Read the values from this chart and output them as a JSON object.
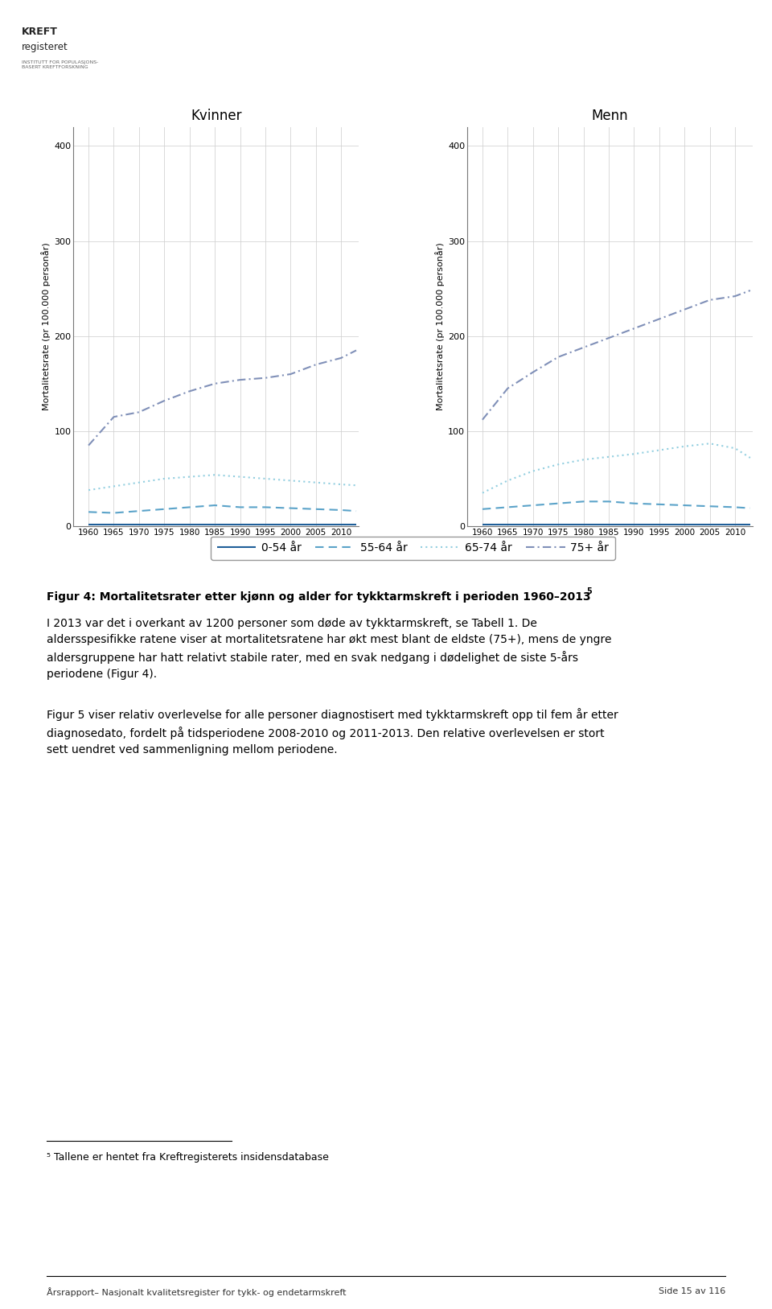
{
  "years": [
    1960,
    1965,
    1970,
    1975,
    1980,
    1985,
    1990,
    1995,
    2000,
    2005,
    2010,
    2013
  ],
  "kvinner": {
    "age_0_54": [
      1.5,
      1.5,
      1.5,
      1.5,
      1.5,
      1.5,
      1.5,
      1.5,
      1.5,
      1.5,
      1.5,
      1.5
    ],
    "age_55_64": [
      15,
      14,
      16,
      18,
      20,
      22,
      20,
      20,
      19,
      18,
      17,
      16
    ],
    "age_65_74": [
      38,
      42,
      46,
      50,
      52,
      54,
      52,
      50,
      48,
      46,
      44,
      43
    ],
    "age_75plus": [
      85,
      115,
      120,
      132,
      142,
      150,
      154,
      156,
      160,
      170,
      177,
      185
    ]
  },
  "menn": {
    "age_0_54": [
      1.5,
      1.5,
      1.5,
      1.5,
      1.5,
      1.5,
      1.5,
      1.5,
      1.5,
      1.5,
      1.5,
      1.5
    ],
    "age_55_64": [
      18,
      20,
      22,
      24,
      26,
      26,
      24,
      23,
      22,
      21,
      20,
      19
    ],
    "age_65_74": [
      35,
      48,
      58,
      65,
      70,
      73,
      76,
      80,
      84,
      87,
      82,
      72
    ],
    "age_75plus": [
      112,
      145,
      162,
      178,
      188,
      198,
      208,
      218,
      228,
      238,
      242,
      248
    ]
  },
  "color_0_54": "#1f5f99",
  "color_55_64": "#5ba3c9",
  "color_65_74": "#93cfe0",
  "color_75plus": "#8090b8",
  "ylabel": "Mortalitetsrate (pr 100.000 personår)",
  "ylim": [
    0,
    420
  ],
  "yticks": [
    0,
    100,
    200,
    300,
    400
  ],
  "xtick_years": [
    1960,
    1965,
    1970,
    1975,
    1980,
    1985,
    1990,
    1995,
    2000,
    2005,
    2010
  ],
  "title_kvinner": "Kvinner",
  "title_menn": "Menn",
  "legend_labels": [
    "0-54 år",
    "55-64 år",
    "65-74 år",
    "75+ år"
  ],
  "fig_caption": "Figur 4: Mortalitetsrater etter kjønn og alder for tykktarmskreft i perioden 1960–2013",
  "fig_caption_super": "5",
  "body_text1": "I 2013 var det i overkant av 1200 personer som døde av tykktarmskreft, se Tabell 1. De\naldersspesifikke ratene viser at mortalitetsratene har økt mest blant de eldste (75+), mens de yngre\naldersgruppene har hatt relativt stabile rater, med en svak nedgang i dødelighet de siste 5-års\nperiodene (Figur 4).",
  "body_text2": "Figur 5 viser relativ overlevelse for alle personer diagnostisert med tykktarmskreft opp til fem år etter\ndiagnosedato, fordelt på tidsperiodene 2008-2010 og 2011-2013. Den relative overlevelsen er stort\nsett uendret ved sammenligning mellom periodene.",
  "footnote": "⁵ Tallene er hentet fra Kreftregisterets insidensdatabase",
  "footer_left": "Årsrapport– Nasjonalt kvalitetsregister for tykk- og endetarmskreft",
  "footer_right": "Side 15 av 116",
  "background_color": "#ffffff",
  "grid_color": "#d0d0d0"
}
